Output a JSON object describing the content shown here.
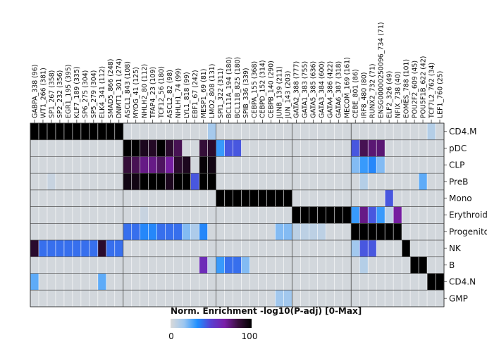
{
  "chart_data": {
    "type": "heatmap",
    "columns": [
      "GABPA_338 (96)",
      "WT1_266 (381)",
      "SP1_267 (358)",
      "SP2_232 (356)",
      "EGR1_195 (395)",
      "KLF7_189 (335)",
      "SP6_275 (304)",
      "SP5_279 (304)",
      "ELK4_341 (112)",
      "SMAD5_866 (248)",
      "DNMT1_301 (274)",
      "ASCL1_843 (108)",
      "MYOG_41 (125)",
      "NHLH2_80 (112)",
      "TFAP4_23 (109)",
      "TCF12_56 (180)",
      "ASCL2_82 (98)",
      "NHLH1_74 (99)",
      "LYL1_818 (99)",
      "EBF1_67 (242)",
      "MESP1_69 (81)",
      "LMO2_808 (131)",
      "SPI1_322 (311)",
      "BCL11A_194 (180)",
      "BCL11B_825 (180)",
      "SPIB_336 (339)",
      "CEBPA_155 (368)",
      "CEBPD_152 (314)",
      "CEBPB_140 (290)",
      "JUNB_139 (211)",
      "JUN_143 (203)",
      "GATA2_388 (777)",
      "GATA1_383 (755)",
      "GATA5_385 (636)",
      "GATA3_384 (600)",
      "GATA4_386 (422)",
      "GATA6_387 (318)",
      "MECOM_169 (161)",
      "CEBE_801 (86)",
      "IRF8_480 (80)",
      "RUNX2_732 (71)",
      "ENSG00000250096_734 (71)",
      "ELF2_326 (49)",
      "NFIX_738 (40)",
      "EOMES_788 (101)",
      "POU2F2_609 (45)",
      "POU5F1B_622 (42)",
      "TCF7L2_762 (34)",
      "LEF1_760 (25)"
    ],
    "rows": [
      "CD4.M",
      "pDC",
      "CLP",
      "PreB",
      "Mono",
      "Erythroid",
      "Progenito",
      "NK",
      "B",
      "CD4.N",
      "GMP"
    ],
    "values": [
      [
        100,
        100,
        100,
        100,
        100,
        100,
        100,
        100,
        100,
        100,
        100,
        2,
        2,
        2,
        2,
        2,
        2,
        2,
        2,
        2,
        2,
        14,
        2,
        2,
        2,
        2,
        2,
        2,
        2,
        2,
        2,
        2,
        2,
        2,
        2,
        2,
        2,
        2,
        2,
        2,
        2,
        2,
        2,
        2,
        2,
        2,
        2,
        10,
        2
      ],
      [
        2,
        2,
        2,
        2,
        2,
        2,
        2,
        2,
        2,
        2,
        2,
        100,
        100,
        92,
        90,
        100,
        88,
        80,
        2,
        2,
        85,
        88,
        30,
        45,
        45,
        2,
        2,
        2,
        2,
        2,
        2,
        2,
        2,
        2,
        2,
        2,
        2,
        2,
        45,
        80,
        75,
        75,
        2,
        2,
        2,
        2,
        2,
        2,
        2
      ],
      [
        2,
        2,
        2,
        2,
        2,
        2,
        2,
        2,
        2,
        2,
        2,
        85,
        80,
        72,
        72,
        78,
        68,
        88,
        92,
        2,
        98,
        95,
        2,
        2,
        2,
        2,
        2,
        2,
        2,
        2,
        2,
        2,
        2,
        2,
        2,
        2,
        2,
        2,
        20,
        30,
        35,
        20,
        2,
        2,
        2,
        2,
        2,
        2,
        2
      ],
      [
        2,
        2,
        5,
        2,
        2,
        2,
        2,
        2,
        2,
        2,
        2,
        95,
        95,
        100,
        100,
        100,
        92,
        100,
        100,
        45,
        100,
        100,
        2,
        2,
        2,
        2,
        2,
        2,
        2,
        2,
        2,
        2,
        2,
        2,
        2,
        2,
        2,
        2,
        2,
        10,
        2,
        2,
        2,
        2,
        2,
        2,
        25,
        2,
        2
      ],
      [
        2,
        2,
        2,
        2,
        2,
        2,
        2,
        2,
        2,
        2,
        2,
        2,
        2,
        2,
        2,
        2,
        2,
        2,
        2,
        2,
        2,
        2,
        100,
        100,
        100,
        100,
        100,
        100,
        100,
        100,
        100,
        2,
        2,
        2,
        2,
        2,
        2,
        2,
        2,
        2,
        2,
        2,
        45,
        2,
        2,
        2,
        2,
        2,
        2
      ],
      [
        2,
        2,
        2,
        2,
        2,
        2,
        2,
        2,
        2,
        2,
        2,
        2,
        2,
        5,
        2,
        2,
        2,
        2,
        2,
        2,
        2,
        2,
        2,
        2,
        2,
        2,
        2,
        2,
        2,
        2,
        2,
        100,
        100,
        100,
        100,
        100,
        100,
        100,
        30,
        72,
        45,
        30,
        8,
        68,
        2,
        2,
        2,
        2,
        2
      ],
      [
        2,
        2,
        2,
        2,
        2,
        2,
        2,
        2,
        2,
        2,
        2,
        40,
        40,
        35,
        35,
        40,
        40,
        40,
        20,
        12,
        35,
        2,
        2,
        2,
        2,
        2,
        2,
        2,
        2,
        20,
        20,
        8,
        8,
        8,
        8,
        2,
        2,
        2,
        100,
        100,
        100,
        100,
        100,
        100,
        2,
        2,
        2,
        2,
        2
      ],
      [
        88,
        40,
        40,
        40,
        40,
        40,
        40,
        40,
        88,
        40,
        40,
        2,
        2,
        2,
        2,
        2,
        2,
        2,
        2,
        2,
        2,
        2,
        2,
        2,
        2,
        2,
        2,
        2,
        2,
        2,
        2,
        2,
        2,
        2,
        2,
        2,
        2,
        2,
        15,
        45,
        45,
        2,
        2,
        2,
        100,
        2,
        2,
        2,
        2
      ],
      [
        2,
        2,
        2,
        2,
        2,
        2,
        2,
        2,
        2,
        2,
        2,
        2,
        2,
        2,
        2,
        2,
        2,
        2,
        2,
        2,
        60,
        8,
        30,
        40,
        40,
        20,
        2,
        2,
        2,
        2,
        2,
        2,
        2,
        2,
        2,
        2,
        2,
        2,
        2,
        10,
        2,
        2,
        2,
        2,
        2,
        100,
        100,
        2,
        2
      ],
      [
        25,
        2,
        2,
        2,
        2,
        2,
        2,
        2,
        25,
        2,
        2,
        2,
        2,
        2,
        2,
        2,
        2,
        2,
        2,
        2,
        2,
        2,
        2,
        2,
        2,
        2,
        2,
        2,
        2,
        2,
        2,
        2,
        2,
        2,
        2,
        2,
        2,
        2,
        2,
        2,
        2,
        2,
        2,
        2,
        2,
        2,
        2,
        100,
        100
      ],
      [
        2,
        2,
        2,
        2,
        2,
        2,
        2,
        2,
        2,
        2,
        2,
        2,
        2,
        2,
        2,
        2,
        2,
        2,
        2,
        2,
        2,
        2,
        2,
        2,
        2,
        2,
        2,
        2,
        2,
        15,
        15,
        2,
        2,
        2,
        2,
        2,
        2,
        2,
        2,
        2,
        2,
        2,
        2,
        2,
        2,
        2,
        2,
        2,
        2
      ]
    ],
    "color_scale": {
      "stops": [
        "#d9d9d9",
        "#9cc6f0",
        "#1f8fff",
        "#5a3fd1",
        "#7a1fa8",
        "#3a0f3e",
        "#000000"
      ],
      "min": 0,
      "max": 100
    },
    "legend": {
      "title": "Norm. Enrichment -log10(P-adj) [0-Max]",
      "min_label": "0",
      "max_label": "100"
    }
  }
}
